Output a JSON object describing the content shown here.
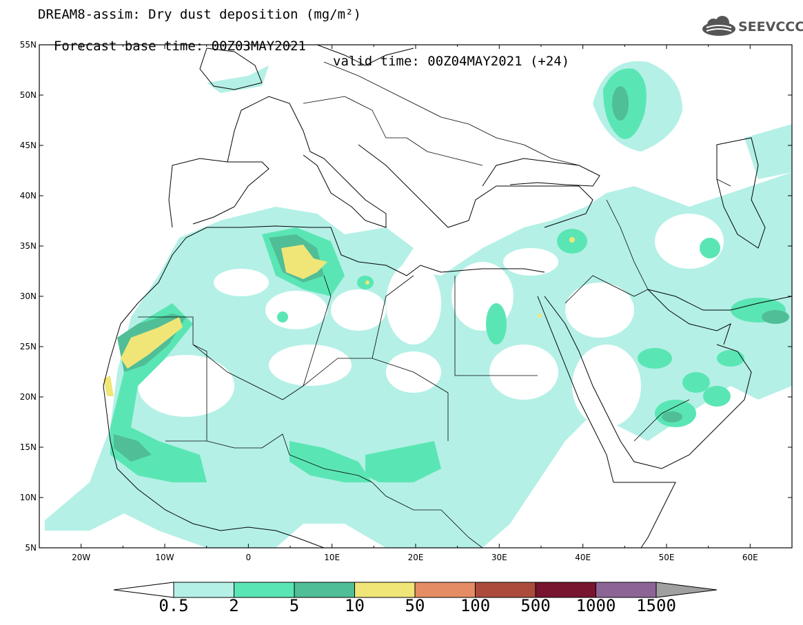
{
  "header": {
    "title_line1": "DREAM8-assim: Dry dust deposition (mg/m²)",
    "base_time": "Forecast base time: 00Z03MAY2021",
    "valid_time": "valid time: 00Z04MAY2021 (+24)"
  },
  "logo": {
    "text": "SEEVCCC",
    "icon": "cloud-logo-icon"
  },
  "map": {
    "lon_range": [
      -25,
      65
    ],
    "lat_range": [
      5,
      55
    ],
    "lat_ticks": [
      "5N",
      "10N",
      "15N",
      "20N",
      "25N",
      "30N",
      "35N",
      "40N",
      "45N",
      "50N",
      "55N"
    ],
    "lon_ticks": [
      "20W",
      "10W",
      "0",
      "10E",
      "20E",
      "30E",
      "40E",
      "50E",
      "60E"
    ]
  },
  "colorbar": {
    "labels": [
      "0.5",
      "2",
      "5",
      "10",
      "50",
      "100",
      "500",
      "1000",
      "1500"
    ],
    "colors": [
      "#b4f0e6",
      "#5ae6b4",
      "#50be96",
      "#f0e678",
      "#e68c64",
      "#aa4b3c",
      "#78142d",
      "#8c6496"
    ],
    "under_color": "#ffffff",
    "over_color": "#a0a0a0"
  }
}
